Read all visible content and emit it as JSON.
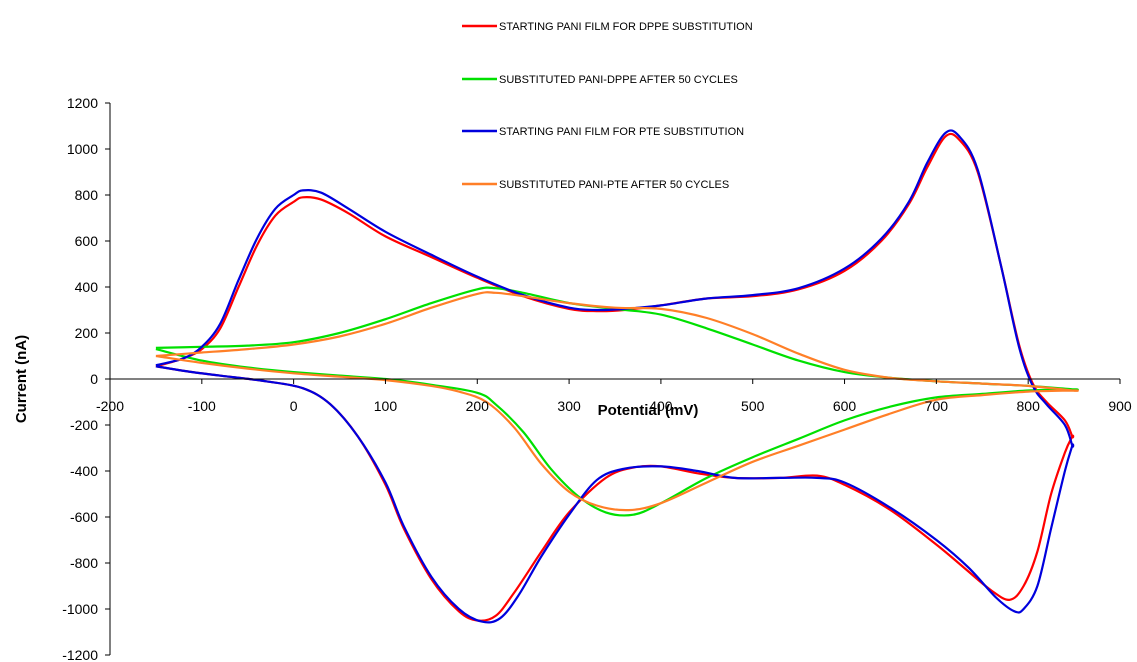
{
  "chart_data": {
    "type": "line",
    "title": "",
    "xlabel": "Potential (mV)",
    "ylabel": "Current (nA)",
    "xlim": [
      -200,
      900
    ],
    "ylim": [
      -1200,
      1200
    ],
    "x_ticks": [
      -200,
      -100,
      0,
      100,
      200,
      300,
      400,
      500,
      600,
      700,
      800,
      900
    ],
    "y_ticks": [
      1200,
      1000,
      800,
      600,
      400,
      200,
      0,
      -200,
      -400,
      -600,
      -800,
      -1000,
      -1200
    ],
    "grid": false,
    "legend_position": "top-right",
    "series": [
      {
        "name": "STARTING PANI FILM FOR DPPE SUBSTITUTION",
        "color": "#ff0000",
        "points": [
          [
            -150,
            55
          ],
          [
            -120,
            90
          ],
          [
            -100,
            130
          ],
          [
            -80,
            220
          ],
          [
            -60,
            400
          ],
          [
            -40,
            580
          ],
          [
            -20,
            710
          ],
          [
            0,
            770
          ],
          [
            10,
            790
          ],
          [
            30,
            780
          ],
          [
            60,
            720
          ],
          [
            100,
            620
          ],
          [
            150,
            530
          ],
          [
            200,
            440
          ],
          [
            250,
            360
          ],
          [
            300,
            305
          ],
          [
            330,
            295
          ],
          [
            360,
            300
          ],
          [
            400,
            320
          ],
          [
            450,
            350
          ],
          [
            500,
            360
          ],
          [
            550,
            390
          ],
          [
            600,
            470
          ],
          [
            640,
            600
          ],
          [
            670,
            760
          ],
          [
            690,
            920
          ],
          [
            710,
            1055
          ],
          [
            725,
            1040
          ],
          [
            745,
            900
          ],
          [
            770,
            500
          ],
          [
            790,
            150
          ],
          [
            805,
            -20
          ],
          [
            820,
            -100
          ],
          [
            840,
            -180
          ],
          [
            848,
            -250
          ],
          [
            848,
            -250
          ],
          [
            840,
            -320
          ],
          [
            825,
            -500
          ],
          [
            810,
            -750
          ],
          [
            795,
            -900
          ],
          [
            780,
            -960
          ],
          [
            760,
            -920
          ],
          [
            730,
            -820
          ],
          [
            700,
            -720
          ],
          [
            650,
            -570
          ],
          [
            600,
            -460
          ],
          [
            570,
            -420
          ],
          [
            530,
            -430
          ],
          [
            480,
            -430
          ],
          [
            440,
            -410
          ],
          [
            400,
            -380
          ],
          [
            370,
            -385
          ],
          [
            340,
            -430
          ],
          [
            300,
            -580
          ],
          [
            270,
            -750
          ],
          [
            240,
            -930
          ],
          [
            220,
            -1030
          ],
          [
            200,
            -1050
          ],
          [
            180,
            -1010
          ],
          [
            150,
            -870
          ],
          [
            120,
            -650
          ],
          [
            100,
            -460
          ],
          [
            70,
            -250
          ],
          [
            40,
            -110
          ],
          [
            10,
            -40
          ],
          [
            -30,
            -10
          ],
          [
            -70,
            10
          ],
          [
            -110,
            30
          ],
          [
            -150,
            55
          ]
        ]
      },
      {
        "name": "SUBSTITUTED PANI-DPPE AFTER 50 CYCLES",
        "color": "#00e000",
        "points": [
          [
            -150,
            135
          ],
          [
            -100,
            140
          ],
          [
            -50,
            145
          ],
          [
            0,
            160
          ],
          [
            50,
            200
          ],
          [
            100,
            260
          ],
          [
            150,
            330
          ],
          [
            200,
            390
          ],
          [
            220,
            395
          ],
          [
            250,
            375
          ],
          [
            300,
            330
          ],
          [
            350,
            305
          ],
          [
            400,
            280
          ],
          [
            450,
            220
          ],
          [
            500,
            150
          ],
          [
            550,
            80
          ],
          [
            600,
            30
          ],
          [
            650,
            5
          ],
          [
            700,
            -10
          ],
          [
            750,
            -20
          ],
          [
            800,
            -30
          ],
          [
            848,
            -45
          ],
          [
            848,
            -45
          ],
          [
            800,
            -50
          ],
          [
            750,
            -65
          ],
          [
            700,
            -80
          ],
          [
            650,
            -120
          ],
          [
            600,
            -180
          ],
          [
            550,
            -260
          ],
          [
            500,
            -340
          ],
          [
            450,
            -430
          ],
          [
            400,
            -540
          ],
          [
            370,
            -590
          ],
          [
            340,
            -580
          ],
          [
            310,
            -510
          ],
          [
            280,
            -390
          ],
          [
            250,
            -230
          ],
          [
            220,
            -110
          ],
          [
            200,
            -60
          ],
          [
            150,
            -25
          ],
          [
            100,
            0
          ],
          [
            50,
            15
          ],
          [
            0,
            30
          ],
          [
            -50,
            50
          ],
          [
            -100,
            80
          ],
          [
            -150,
            130
          ]
        ]
      },
      {
        "name": "STARTING PANI FILM FOR PTE SUBSTITUTION",
        "color": "#0000dd",
        "points": [
          [
            -150,
            60
          ],
          [
            -120,
            90
          ],
          [
            -100,
            140
          ],
          [
            -80,
            240
          ],
          [
            -60,
            430
          ],
          [
            -40,
            610
          ],
          [
            -20,
            740
          ],
          [
            0,
            800
          ],
          [
            10,
            820
          ],
          [
            30,
            810
          ],
          [
            60,
            740
          ],
          [
            100,
            640
          ],
          [
            150,
            540
          ],
          [
            200,
            445
          ],
          [
            250,
            365
          ],
          [
            300,
            310
          ],
          [
            330,
            300
          ],
          [
            360,
            305
          ],
          [
            400,
            320
          ],
          [
            450,
            350
          ],
          [
            500,
            365
          ],
          [
            550,
            395
          ],
          [
            600,
            480
          ],
          [
            640,
            610
          ],
          [
            670,
            770
          ],
          [
            690,
            940
          ],
          [
            710,
            1070
          ],
          [
            725,
            1055
          ],
          [
            745,
            910
          ],
          [
            770,
            500
          ],
          [
            790,
            140
          ],
          [
            805,
            -30
          ],
          [
            820,
            -110
          ],
          [
            840,
            -200
          ],
          [
            848,
            -290
          ],
          [
            848,
            -290
          ],
          [
            840,
            -400
          ],
          [
            825,
            -650
          ],
          [
            810,
            -900
          ],
          [
            795,
            -1000
          ],
          [
            785,
            -1010
          ],
          [
            765,
            -950
          ],
          [
            735,
            -820
          ],
          [
            700,
            -700
          ],
          [
            650,
            -560
          ],
          [
            600,
            -450
          ],
          [
            570,
            -430
          ],
          [
            530,
            -430
          ],
          [
            480,
            -430
          ],
          [
            440,
            -400
          ],
          [
            400,
            -380
          ],
          [
            360,
            -390
          ],
          [
            330,
            -440
          ],
          [
            300,
            -590
          ],
          [
            270,
            -770
          ],
          [
            245,
            -940
          ],
          [
            225,
            -1040
          ],
          [
            205,
            -1055
          ],
          [
            180,
            -1000
          ],
          [
            150,
            -860
          ],
          [
            120,
            -640
          ],
          [
            100,
            -450
          ],
          [
            70,
            -250
          ],
          [
            40,
            -110
          ],
          [
            10,
            -40
          ],
          [
            -30,
            -10
          ],
          [
            -70,
            10
          ],
          [
            -110,
            30
          ],
          [
            -150,
            55
          ]
        ]
      },
      {
        "name": "SUBSTITUTED PANI-PTE AFTER 50 CYCLES",
        "color": "#ff7f27",
        "points": [
          [
            -150,
            100
          ],
          [
            -100,
            115
          ],
          [
            -50,
            130
          ],
          [
            0,
            150
          ],
          [
            50,
            185
          ],
          [
            100,
            240
          ],
          [
            150,
            310
          ],
          [
            200,
            370
          ],
          [
            220,
            375
          ],
          [
            250,
            360
          ],
          [
            300,
            330
          ],
          [
            350,
            310
          ],
          [
            400,
            305
          ],
          [
            450,
            265
          ],
          [
            500,
            195
          ],
          [
            550,
            110
          ],
          [
            600,
            40
          ],
          [
            650,
            5
          ],
          [
            700,
            -10
          ],
          [
            750,
            -20
          ],
          [
            800,
            -30
          ],
          [
            848,
            -50
          ],
          [
            848,
            -50
          ],
          [
            800,
            -55
          ],
          [
            750,
            -70
          ],
          [
            700,
            -90
          ],
          [
            650,
            -150
          ],
          [
            600,
            -220
          ],
          [
            550,
            -290
          ],
          [
            500,
            -360
          ],
          [
            450,
            -450
          ],
          [
            400,
            -540
          ],
          [
            365,
            -570
          ],
          [
            330,
            -550
          ],
          [
            300,
            -490
          ],
          [
            270,
            -370
          ],
          [
            240,
            -210
          ],
          [
            210,
            -100
          ],
          [
            180,
            -55
          ],
          [
            150,
            -30
          ],
          [
            100,
            -5
          ],
          [
            50,
            10
          ],
          [
            0,
            25
          ],
          [
            -50,
            45
          ],
          [
            -100,
            70
          ],
          [
            -150,
            100
          ]
        ]
      }
    ]
  }
}
